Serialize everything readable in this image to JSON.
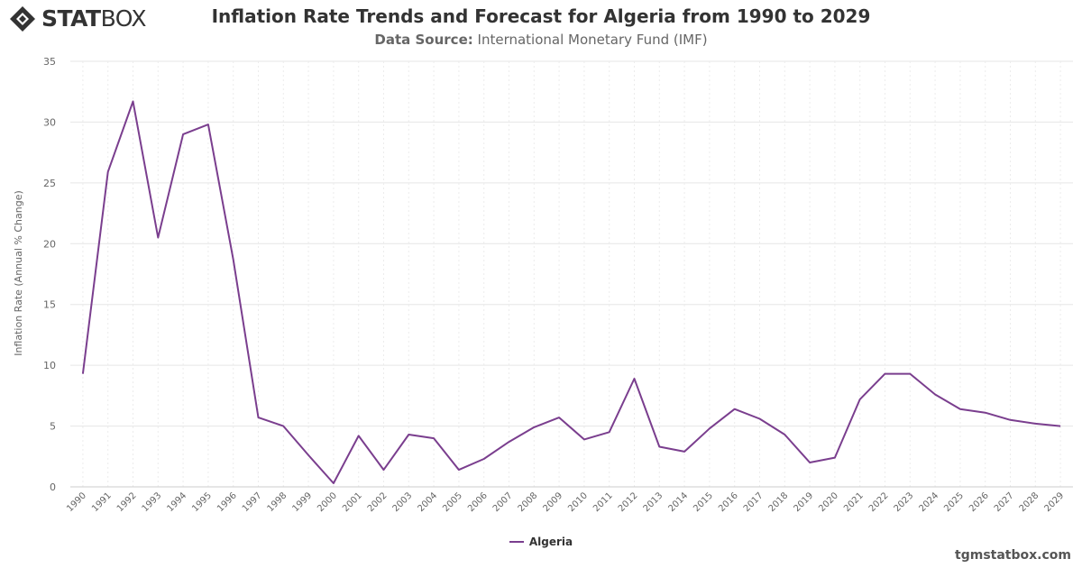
{
  "brand": {
    "logo_bold": "STAT",
    "logo_light": "BOX",
    "site": "tgmstatbox.com"
  },
  "chart_data": {
    "type": "line",
    "title": "Inflation Rate Trends and Forecast for Algeria from 1990 to 2029",
    "subtitle_label": "Data Source:",
    "subtitle_value": "International Monetary Fund (IMF)",
    "ylabel": "Inflation Rate (Annual % Change)",
    "xlabel": "",
    "ylim": [
      0,
      35
    ],
    "yticks": [
      0,
      5,
      10,
      15,
      20,
      25,
      30,
      35
    ],
    "grid": true,
    "legend_position": "bottom-center",
    "categories": [
      "1990",
      "1991",
      "1992",
      "1993",
      "1994",
      "1995",
      "1996",
      "1997",
      "1998",
      "1999",
      "2000",
      "2001",
      "2002",
      "2003",
      "2004",
      "2005",
      "2006",
      "2007",
      "2008",
      "2009",
      "2010",
      "2011",
      "2012",
      "2013",
      "2014",
      "2015",
      "2016",
      "2017",
      "2018",
      "2019",
      "2020",
      "2021",
      "2022",
      "2023",
      "2024",
      "2025",
      "2026",
      "2027",
      "2028",
      "2029"
    ],
    "series": [
      {
        "name": "Algeria",
        "color": "#7a3e8e",
        "values": [
          9.3,
          25.9,
          31.7,
          20.5,
          29.0,
          29.8,
          18.7,
          5.7,
          5.0,
          2.6,
          0.3,
          4.2,
          1.4,
          4.3,
          4.0,
          1.4,
          2.3,
          3.7,
          4.9,
          5.7,
          3.9,
          4.5,
          8.9,
          3.3,
          2.9,
          4.8,
          6.4,
          5.6,
          4.3,
          2.0,
          2.4,
          7.2,
          9.3,
          9.3,
          7.6,
          6.4,
          6.1,
          5.5,
          5.2,
          5.0
        ]
      }
    ]
  }
}
